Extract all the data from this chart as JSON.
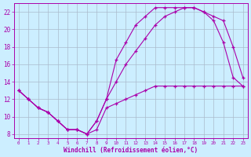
{
  "background_color": "#cceeff",
  "grid_color": "#aabbcc",
  "line_color": "#aa00aa",
  "xlabel": "Windchill (Refroidissement éolien,°C)",
  "xlim": [
    -0.5,
    23.5
  ],
  "ylim": [
    7.5,
    23.0
  ],
  "yticks": [
    8,
    10,
    12,
    14,
    16,
    18,
    20,
    22
  ],
  "xticks": [
    0,
    1,
    2,
    3,
    4,
    5,
    6,
    7,
    8,
    9,
    10,
    11,
    12,
    13,
    14,
    15,
    16,
    17,
    18,
    19,
    20,
    21,
    22,
    23
  ],
  "line1_x": [
    0,
    1,
    2,
    3,
    4,
    5,
    6,
    7,
    8,
    9,
    10,
    11,
    12,
    13,
    14,
    15,
    16,
    17,
    18,
    19,
    20,
    21,
    22,
    23
  ],
  "line1_y": [
    13,
    12,
    11,
    10.5,
    9.5,
    8.5,
    8.5,
    8.0,
    8.5,
    11.0,
    11.5,
    12.0,
    12.5,
    13.0,
    13.5,
    13.5,
    13.5,
    13.5,
    13.5,
    13.5,
    13.5,
    13.5,
    13.5,
    13.5
  ],
  "line2_x": [
    0,
    1,
    2,
    3,
    4,
    5,
    6,
    7,
    8,
    9,
    10,
    11,
    12,
    13,
    14,
    15,
    16,
    17,
    18,
    19,
    20,
    21,
    22,
    23
  ],
  "line2_y": [
    13,
    12,
    11,
    10.5,
    9.5,
    8.5,
    8.5,
    8.0,
    9.5,
    12.0,
    14.0,
    16.0,
    17.5,
    19.0,
    20.5,
    21.5,
    22.0,
    22.5,
    22.5,
    22.0,
    21.0,
    18.5,
    14.5,
    13.5
  ],
  "line3_x": [
    0,
    1,
    2,
    3,
    4,
    5,
    6,
    7,
    8,
    9,
    10,
    11,
    12,
    13,
    14,
    15,
    16,
    17,
    18,
    19,
    20,
    21,
    22,
    23
  ],
  "line3_y": [
    13,
    12,
    11,
    10.5,
    9.5,
    8.5,
    8.5,
    8.0,
    9.5,
    12.0,
    16.5,
    18.5,
    20.5,
    21.5,
    22.5,
    22.5,
    22.5,
    22.5,
    22.5,
    22.0,
    21.5,
    21.0,
    18.0,
    14.5
  ]
}
